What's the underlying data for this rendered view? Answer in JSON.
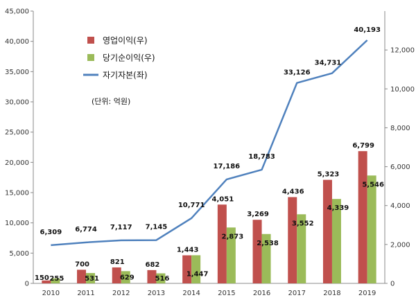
{
  "chart_data": {
    "type": "bar",
    "categories": [
      "2010",
      "2011",
      "2012",
      "2013",
      "2014",
      "2015",
      "2016",
      "2017",
      "2018",
      "2019"
    ],
    "series": [
      {
        "name": "영업이익(우)",
        "kind": "bar",
        "axis": "right",
        "color": "#c0504d",
        "values": [
          150,
          700,
          821,
          682,
          1443,
          4051,
          3269,
          4436,
          5323,
          6799
        ]
      },
      {
        "name": "당기순이익(우)",
        "kind": "bar",
        "axis": "right",
        "color": "#9bbb59",
        "values": [
          255,
          531,
          629,
          516,
          1447,
          2873,
          2538,
          3552,
          4339,
          5546
        ]
      },
      {
        "name": "자기자본(좌)",
        "kind": "line",
        "axis": "left",
        "color": "#4f81bd",
        "values": [
          6309,
          6774,
          7117,
          7145,
          10771,
          17186,
          18783,
          33126,
          34731,
          40193
        ]
      }
    ],
    "y_left": {
      "min": 0,
      "max": 45000,
      "step": 5000,
      "ticks": [
        "0",
        "5,000",
        "10,000",
        "15,000",
        "20,000",
        "25,000",
        "30,000",
        "35,000",
        "40,000",
        "45,000"
      ]
    },
    "y_right": {
      "min": 0,
      "max": 14000,
      "step": 2000,
      "ticks": [
        "0",
        "2,000",
        "4,000",
        "6,000",
        "8,000",
        "10,000",
        "12,000"
      ]
    },
    "unit_note": "(단위: 억원)",
    "legend_position": "top-left",
    "grid": false,
    "title": "",
    "xlabel": "",
    "ylabel": ""
  }
}
